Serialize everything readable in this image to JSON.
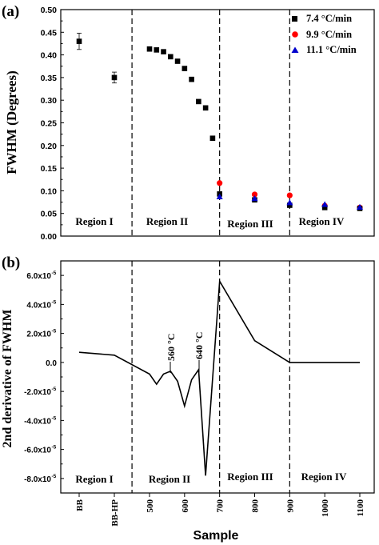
{
  "colors": {
    "series_7_4": "#000000",
    "series_9_9": "#ff0000",
    "series_11_1": "#0000cc",
    "axis": "#000000"
  },
  "chart_data": [
    {
      "panel_label": "(a)",
      "type": "scatter",
      "ylabel": "FWHM (Degrees)",
      "ylim": [
        0.0,
        0.5
      ],
      "yticks": [
        "0.00",
        "0.05",
        "0.10",
        "0.15",
        "0.20",
        "0.25",
        "0.30",
        "0.35",
        "0.40",
        "0.45",
        "0.50"
      ],
      "ytick_values": [
        0.0,
        0.05,
        0.1,
        0.15,
        0.2,
        0.25,
        0.3,
        0.35,
        0.4,
        0.45,
        0.5
      ],
      "legend_position": "top-right",
      "regions": [
        "Region I",
        "Region II",
        "Region III",
        "Region IV"
      ],
      "series": [
        {
          "name": "7.4 °C/min",
          "marker": "square",
          "points": [
            {
              "x": "BB",
              "y": 0.43,
              "err": 0.018
            },
            {
              "x": "BB-HP",
              "y": 0.35,
              "err": 0.012
            },
            {
              "x": 500,
              "y": 0.413
            },
            {
              "x": 520,
              "y": 0.411
            },
            {
              "x": 540,
              "y": 0.407
            },
            {
              "x": 560,
              "y": 0.396
            },
            {
              "x": 580,
              "y": 0.386
            },
            {
              "x": 600,
              "y": 0.37
            },
            {
              "x": 620,
              "y": 0.346
            },
            {
              "x": 640,
              "y": 0.297
            },
            {
              "x": 660,
              "y": 0.283
            },
            {
              "x": 680,
              "y": 0.216
            },
            {
              "x": 700,
              "y": 0.093
            },
            {
              "x": 800,
              "y": 0.08
            },
            {
              "x": 900,
              "y": 0.068
            },
            {
              "x": 1000,
              "y": 0.063
            },
            {
              "x": 1100,
              "y": 0.061
            }
          ]
        },
        {
          "name": "9.9 °C/min",
          "marker": "circle",
          "points": [
            {
              "x": 700,
              "y": 0.117
            },
            {
              "x": 800,
              "y": 0.092
            },
            {
              "x": 900,
              "y": 0.09
            },
            {
              "x": 1000,
              "y": 0.067
            },
            {
              "x": 1100,
              "y": 0.063
            }
          ]
        },
        {
          "name": "11.1 °C/min",
          "marker": "triangle",
          "points": [
            {
              "x": 700,
              "y": 0.087
            },
            {
              "x": 800,
              "y": 0.083
            },
            {
              "x": 900,
              "y": 0.074
            },
            {
              "x": 1000,
              "y": 0.07
            },
            {
              "x": 1100,
              "y": 0.064
            }
          ]
        }
      ]
    },
    {
      "panel_label": "(b)",
      "type": "line",
      "ylabel": "2nd derivative of FWHM",
      "xlabel": "Sample",
      "ylim": [
        -9e-05,
        7e-05
      ],
      "yticks": [
        "-8.0x10",
        "-6.0x10",
        "-4.0x10",
        "-2.0x10",
        "0.0",
        "2.0x10",
        "4.0x10",
        "6.0x10"
      ],
      "ytick_exponent": "-5",
      "ytick_values": [
        -8e-05,
        -6e-05,
        -4e-05,
        -2e-05,
        0,
        2e-05,
        4e-05,
        6e-05
      ],
      "xticks": [
        "BB",
        "BB-HP",
        "500",
        "600",
        "700",
        "800",
        "900",
        "1000",
        "1100"
      ],
      "regions": [
        "Region I",
        "Region II",
        "Region III",
        "Region IV"
      ],
      "annotations": [
        "560 °C",
        "640 °C"
      ],
      "points": [
        {
          "x": "BB",
          "y": 7e-06
        },
        {
          "x": "BB-HP",
          "y": 5e-06
        },
        {
          "x": 500,
          "y": -8e-06
        },
        {
          "x": 520,
          "y": -1.5e-05
        },
        {
          "x": 540,
          "y": -8e-06
        },
        {
          "x": 560,
          "y": -6e-06
        },
        {
          "x": 580,
          "y": -1.3e-05
        },
        {
          "x": 600,
          "y": -3e-05
        },
        {
          "x": 620,
          "y": -1.2e-05
        },
        {
          "x": 640,
          "y": -5e-06
        },
        {
          "x": 660,
          "y": -7.8e-05
        },
        {
          "x": 700,
          "y": 5.6e-05
        },
        {
          "x": 800,
          "y": 1.5e-05
        },
        {
          "x": 900,
          "y": 0
        },
        {
          "x": 1000,
          "y": 0
        },
        {
          "x": 1100,
          "y": 0
        }
      ]
    }
  ]
}
